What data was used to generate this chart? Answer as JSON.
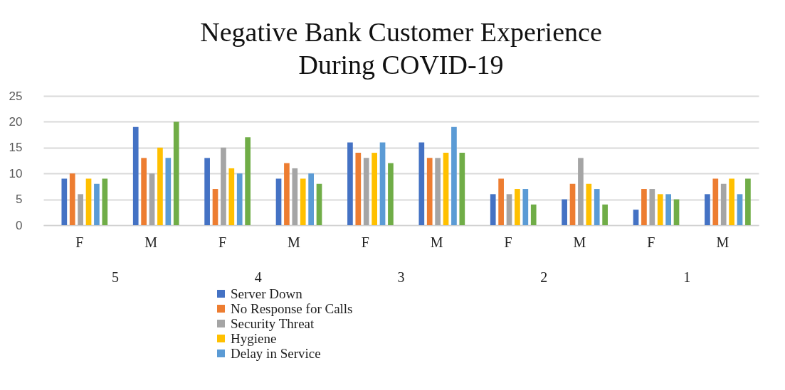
{
  "chart_data": {
    "type": "bar",
    "title": "Negative Bank Customer Experience\nDuring COVID-19",
    "categories": [
      "F",
      "M",
      "F",
      "M",
      "F",
      "M",
      "F",
      "M",
      "F",
      "M"
    ],
    "annotations": [
      "5",
      "4",
      "3",
      "2",
      "1"
    ],
    "series": [
      {
        "name": "Server Down",
        "color": "#4472c4",
        "values": [
          9,
          19,
          13,
          9,
          16,
          16,
          6,
          5,
          3,
          6
        ]
      },
      {
        "name": "No Response for Calls",
        "color": "#ed7d31",
        "values": [
          10,
          13,
          7,
          12,
          14,
          13,
          9,
          8,
          7,
          9
        ]
      },
      {
        "name": "Security Threat",
        "color": "#a5a5a5",
        "values": [
          6,
          10,
          15,
          11,
          13,
          13,
          6,
          13,
          7,
          8
        ]
      },
      {
        "name": "Hygiene",
        "color": "#ffc000",
        "values": [
          9,
          15,
          11,
          9,
          14,
          14,
          7,
          8,
          6,
          9
        ]
      },
      {
        "name": "Delay in Service",
        "color": "#5b9bd5",
        "values": [
          8,
          13,
          10,
          10,
          16,
          19,
          7,
          7,
          6,
          6
        ]
      },
      {
        "color": "#70ad47",
        "values": [
          9,
          20,
          17,
          8,
          12,
          14,
          4,
          4,
          5,
          9
        ]
      }
    ],
    "ylim": [
      0,
      25
    ],
    "yticks": [
      0,
      5,
      10,
      15,
      20,
      25
    ],
    "grid": "y",
    "legend": "bottom"
  }
}
